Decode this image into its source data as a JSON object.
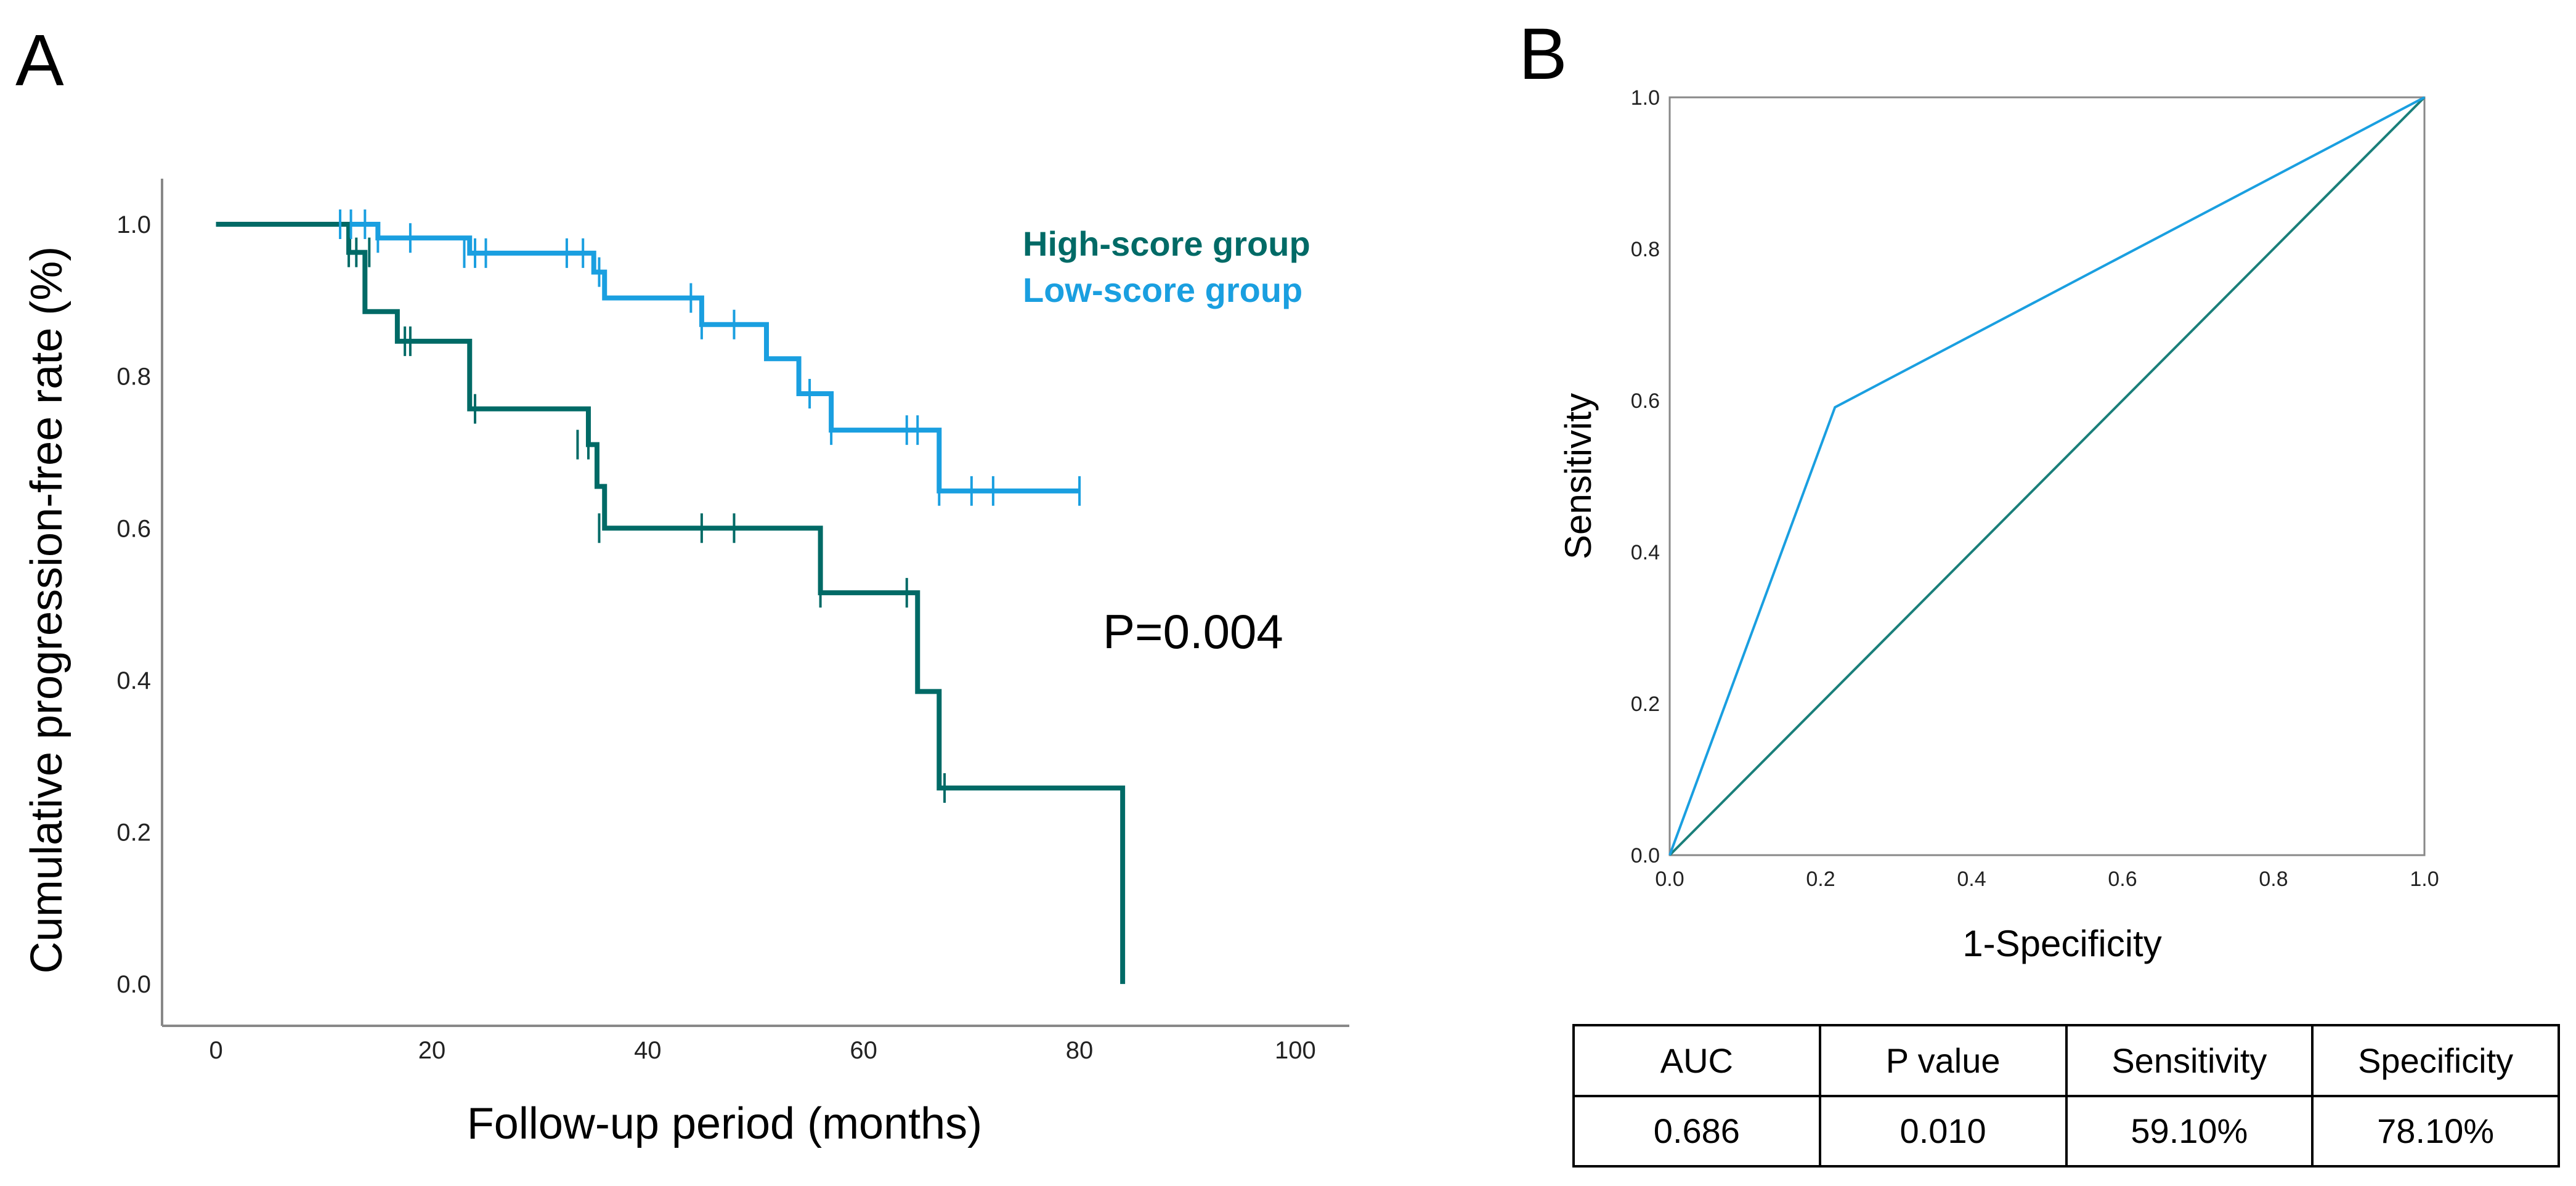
{
  "panels": {
    "a": "A",
    "b": "B"
  },
  "colors": {
    "high": "#006a66",
    "low": "#1a9fe0",
    "axis": "#888888",
    "diag": "#1a7f7a"
  },
  "chart_data": [
    {
      "type": "line",
      "step": true,
      "title": "",
      "xlabel": "Follow-up period (months)",
      "ylabel": "Cumulative progression-free rate (%)",
      "xlim": [
        -5,
        105
      ],
      "ylim": [
        -0.055,
        1.06
      ],
      "xticks": [
        "0",
        "20",
        "40",
        "60",
        "80",
        "100"
      ],
      "xtick_values": [
        0,
        20,
        40,
        60,
        80,
        100
      ],
      "yticks": [
        "0.0",
        "0.2",
        "0.4",
        "0.6",
        "0.8",
        "1.0"
      ],
      "ytick_values": [
        0,
        0.2,
        0.4,
        0.6,
        0.8,
        1.0
      ],
      "legend": [
        "High-score group",
        "Low-score group"
      ],
      "annotation": "P=0.004",
      "series": [
        {
          "name": "High-score group",
          "x": [
            0,
            12.3,
            13.8,
            16.8,
            23.5,
            34.5,
            35.3,
            36,
            56,
            65,
            67,
            84
          ],
          "y": [
            1.0,
            0.963,
            0.885,
            0.846,
            0.757,
            0.71,
            0.655,
            0.6,
            0.515,
            0.385,
            0.258,
            0.0
          ],
          "censor_x": [
            12.3,
            13,
            14.2,
            17.5,
            18,
            24,
            33.5,
            34.5,
            35.5,
            45,
            48,
            56,
            64,
            67.5
          ],
          "censor_y": [
            0.963,
            0.963,
            0.963,
            0.846,
            0.846,
            0.757,
            0.71,
            0.71,
            0.6,
            0.6,
            0.6,
            0.515,
            0.515,
            0.258
          ]
        },
        {
          "name": "Low-score group",
          "x": [
            0,
            15,
            23.5,
            35,
            36,
            45,
            51,
            54,
            57,
            67,
            80
          ],
          "y": [
            1.0,
            0.982,
            0.962,
            0.937,
            0.903,
            0.868,
            0.823,
            0.777,
            0.729,
            0.649,
            0.649
          ],
          "censor_x": [
            11.5,
            12.5,
            13.8,
            15,
            18,
            23,
            24,
            25,
            32.5,
            34,
            35.5,
            44,
            45,
            48,
            55,
            57,
            64,
            65,
            67,
            70,
            72,
            80
          ],
          "censor_y": [
            1.0,
            1.0,
            1.0,
            0.982,
            0.982,
            0.962,
            0.962,
            0.962,
            0.962,
            0.962,
            0.937,
            0.903,
            0.868,
            0.868,
            0.777,
            0.729,
            0.729,
            0.729,
            0.649,
            0.649,
            0.649,
            0.649
          ]
        }
      ]
    },
    {
      "type": "line",
      "title": "",
      "xlabel": "1-Specificity",
      "ylabel": "Sensitivity",
      "xlim": [
        0,
        1
      ],
      "ylim": [
        0,
        1
      ],
      "xticks": [
        "0.0",
        "0.2",
        "0.4",
        "0.6",
        "0.8",
        "1.0"
      ],
      "xtick_values": [
        0,
        0.2,
        0.4,
        0.6,
        0.8,
        1.0
      ],
      "yticks": [
        "0.0",
        "0.2",
        "0.4",
        "0.6",
        "0.8",
        "1.0"
      ],
      "ytick_values": [
        0,
        0.2,
        0.4,
        0.6,
        0.8,
        1.0
      ],
      "series": [
        {
          "name": "ROC curve",
          "x": [
            0,
            0.219,
            1
          ],
          "y": [
            0,
            0.591,
            1
          ]
        },
        {
          "name": "Reference line",
          "x": [
            0,
            1
          ],
          "y": [
            0,
            1
          ]
        }
      ]
    }
  ],
  "stats_table": {
    "headers": [
      "AUC",
      "P value",
      "Sensitivity",
      "Specificity"
    ],
    "values": [
      "0.686",
      "0.010",
      "59.10%",
      "78.10%"
    ]
  }
}
